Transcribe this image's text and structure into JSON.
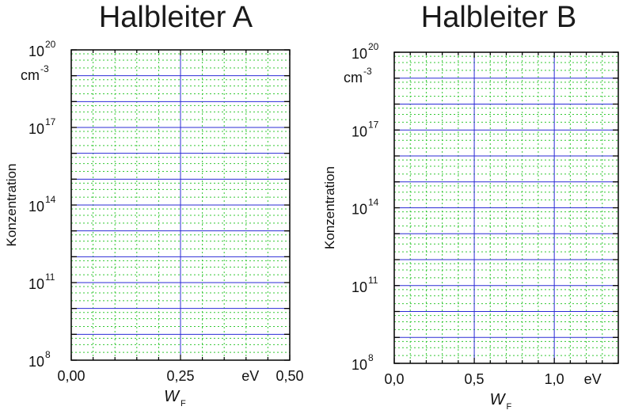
{
  "chart_data": [
    {
      "type": "line",
      "title": "Halbleiter A",
      "ylabel": "Konzentration",
      "yunit": "cm",
      "yunit_exp": "-3",
      "yscale": "log",
      "ylim": [
        100000000.0,
        1e+20
      ],
      "y_tick_labels": [
        {
          "base": "10",
          "exp": "8",
          "value": 100000000.0
        },
        {
          "base": "10",
          "exp": "11",
          "value": 100000000000.0
        },
        {
          "base": "10",
          "exp": "14",
          "value": 100000000000000.0
        },
        {
          "base": "10",
          "exp": "17",
          "value": 1e+17
        },
        {
          "base": "10",
          "exp": "20",
          "value": 1e+20
        }
      ],
      "xlabel": "W",
      "xlabel_sub": "F",
      "xunit": "eV",
      "xlim": [
        0,
        0.5
      ],
      "x_tick_labels": [
        {
          "label": "0,00",
          "value": 0
        },
        {
          "label": "0,25",
          "value": 0.25
        },
        {
          "label": "0,50",
          "value": 0.5
        }
      ],
      "x_unit_value": 0.41,
      "grid": true,
      "series": []
    },
    {
      "type": "line",
      "title": "Halbleiter B",
      "ylabel": "Konzentration",
      "yunit": "cm",
      "yunit_exp": "-3",
      "yscale": "log",
      "ylim": [
        100000000.0,
        1e+20
      ],
      "y_tick_labels": [
        {
          "base": "10",
          "exp": "8",
          "value": 100000000.0
        },
        {
          "base": "10",
          "exp": "11",
          "value": 100000000000.0
        },
        {
          "base": "10",
          "exp": "14",
          "value": 100000000000000.0
        },
        {
          "base": "10",
          "exp": "17",
          "value": 1e+17
        },
        {
          "base": "10",
          "exp": "20",
          "value": 1e+20
        }
      ],
      "xlabel": "W",
      "xlabel_sub": "F",
      "xunit": "eV",
      "xlim": [
        0,
        1.4
      ],
      "x_tick_labels": [
        {
          "label": "0,0",
          "value": 0
        },
        {
          "label": "0,5",
          "value": 0.5
        },
        {
          "label": "1,0",
          "value": 1.0
        }
      ],
      "x_unit_value": 1.24,
      "grid": true,
      "series": []
    }
  ],
  "colors": {
    "grid_major": "#2b2bd6",
    "grid_minor": "#34c834",
    "frame": "#000000"
  }
}
